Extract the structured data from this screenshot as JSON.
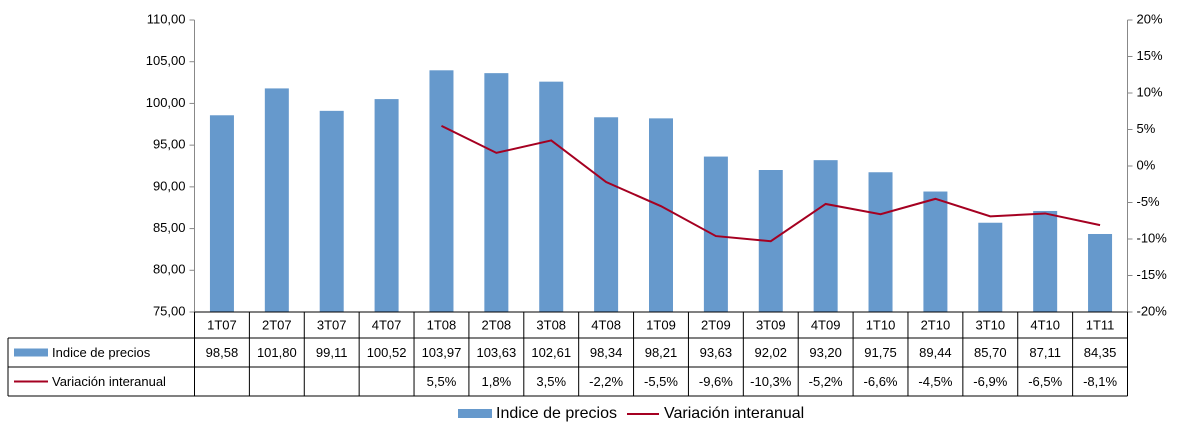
{
  "chart_data": {
    "type": "bar",
    "categories": [
      "1T07",
      "2T07",
      "3T07",
      "4T07",
      "1T08",
      "2T08",
      "3T08",
      "4T08",
      "1T09",
      "2T09",
      "3T09",
      "4T09",
      "1T10",
      "2T10",
      "3T10",
      "4T10",
      "1T11"
    ],
    "series": [
      {
        "name": "Indice de precios",
        "type": "bar",
        "color": "#6699cc",
        "values": [
          98.58,
          101.8,
          99.11,
          100.52,
          103.97,
          103.63,
          102.61,
          98.34,
          98.21,
          93.63,
          92.02,
          93.2,
          91.75,
          89.44,
          85.7,
          87.11,
          84.35
        ],
        "value_labels": [
          "98,58",
          "101,80",
          "99,11",
          "100,52",
          "103,97",
          "103,63",
          "102,61",
          "98,34",
          "98,21",
          "93,63",
          "92,02",
          "93,20",
          "91,75",
          "89,44",
          "85,70",
          "87,11",
          "84,35"
        ]
      },
      {
        "name": "Variación interanual",
        "type": "line",
        "axis": "y2",
        "color": "#a50021",
        "values": [
          null,
          null,
          null,
          null,
          5.5,
          1.8,
          3.5,
          -2.2,
          -5.5,
          -9.6,
          -10.3,
          -5.2,
          -6.6,
          -4.5,
          -6.9,
          -6.5,
          -8.1
        ],
        "value_labels": [
          null,
          null,
          null,
          null,
          "5,5%",
          "1,8%",
          "3,5%",
          "-2,2%",
          "-5,5%",
          "-9,6%",
          "-10,3%",
          "-5,2%",
          "-6,6%",
          "-4,5%",
          "-6,9%",
          "-6,5%",
          "-8,1%"
        ]
      }
    ],
    "ylim": [
      75,
      110
    ],
    "yticks": [
      {
        "value": 75,
        "label": "75,00"
      },
      {
        "value": 80,
        "label": "80,00"
      },
      {
        "value": 85,
        "label": "85,00"
      },
      {
        "value": 90,
        "label": "90,00"
      },
      {
        "value": 95,
        "label": "95,00"
      },
      {
        "value": 100,
        "label": "100,00"
      },
      {
        "value": 105,
        "label": "105,00"
      },
      {
        "value": 110,
        "label": "110,00"
      }
    ],
    "y2lim": [
      -20,
      20
    ],
    "y2ticks": [
      {
        "value": -20,
        "label": "-20%"
      },
      {
        "value": -15,
        "label": "-15%"
      },
      {
        "value": -10,
        "label": "-10%"
      },
      {
        "value": -5,
        "label": "-5%"
      },
      {
        "value": 0,
        "label": "0%"
      },
      {
        "value": 5,
        "label": "5%"
      },
      {
        "value": 10,
        "label": "10%"
      },
      {
        "value": 15,
        "label": "15%"
      },
      {
        "value": 20,
        "label": "20%"
      }
    ],
    "grid": false,
    "legend": "bottom"
  }
}
